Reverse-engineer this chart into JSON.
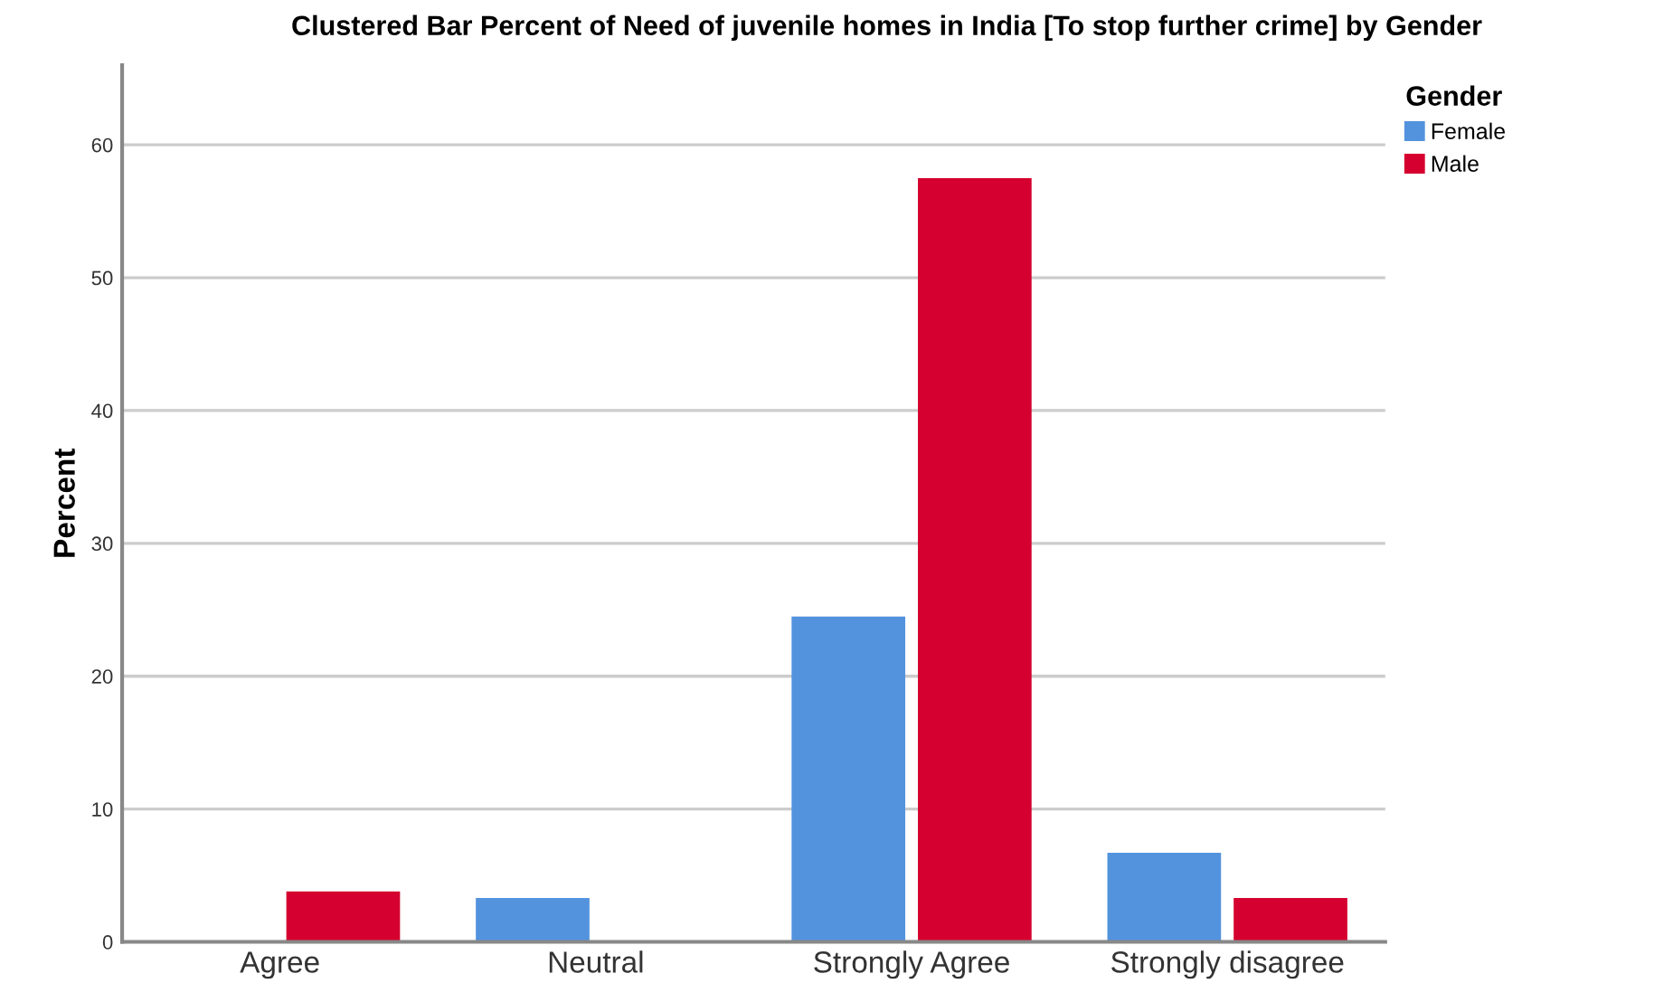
{
  "chart_data": {
    "type": "bar",
    "title": "Clustered Bar Percent of Need of juvenile homes in India [To stop further crime] by Gender",
    "ylabel": "Percent",
    "legend_title": "Gender",
    "categories": [
      "Agree",
      "Neutral",
      "Strongly Agree",
      "Strongly disagree"
    ],
    "series": [
      {
        "name": "Female",
        "color": "#5393de",
        "values": [
          null,
          3.3,
          24.5,
          6.7
        ]
      },
      {
        "name": "Male",
        "color": "#d5002f",
        "values": [
          3.8,
          null,
          57.5,
          3.3
        ]
      }
    ],
    "ylim": [
      0,
      66
    ],
    "yticks": [
      0,
      10,
      20,
      30,
      40,
      50,
      60
    ],
    "grid": "y",
    "legend": "top right"
  }
}
